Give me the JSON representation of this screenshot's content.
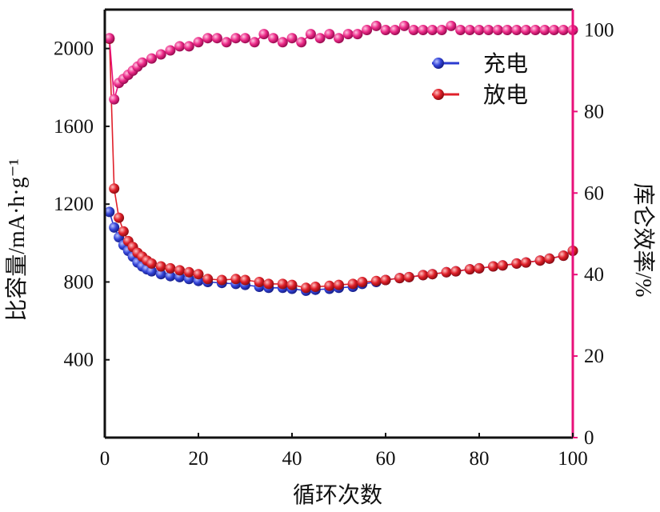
{
  "chart_data": {
    "type": "scatter",
    "xlabel": "循环次数",
    "ylabel": "比容量/mA·h·g⁻¹",
    "y2label": "库仑效率/%",
    "xlim": [
      0,
      100
    ],
    "ylim": [
      0,
      2200
    ],
    "y2lim": [
      0,
      105
    ],
    "xticks": [
      "0",
      "20",
      "40",
      "60",
      "80",
      "100"
    ],
    "yticks": [
      "400",
      "800",
      "1200",
      "1600",
      "2000"
    ],
    "y2ticks": [
      "0",
      "20",
      "40",
      "60",
      "80",
      "100"
    ],
    "legend_position": "top-right",
    "colors": {
      "charge": "#2b3bd0",
      "discharge": "#e0202a",
      "efficiency": "#e8107a",
      "axis": "#111111"
    },
    "series": [
      {
        "name": "充电",
        "axis": "left",
        "x": [
          1,
          2,
          3,
          4,
          5,
          6,
          7,
          8,
          9,
          10,
          12,
          14,
          16,
          18,
          20,
          22,
          25,
          28,
          30,
          33,
          35,
          38,
          40,
          43,
          45,
          48,
          50,
          53,
          55,
          58,
          60,
          63,
          65,
          68,
          70,
          73,
          75,
          78,
          80,
          83,
          85,
          88,
          90,
          93,
          95,
          98,
          100
        ],
        "values": [
          1160,
          1080,
          1030,
          990,
          960,
          930,
          900,
          880,
          865,
          855,
          840,
          830,
          825,
          815,
          805,
          800,
          795,
          790,
          785,
          775,
          770,
          770,
          765,
          755,
          760,
          765,
          770,
          775,
          790,
          800,
          810,
          820,
          825,
          835,
          840,
          850,
          855,
          865,
          870,
          880,
          885,
          895,
          900,
          910,
          920,
          935,
          960
        ]
      },
      {
        "name": "放电",
        "axis": "left",
        "x": [
          1,
          2,
          3,
          4,
          5,
          6,
          7,
          8,
          9,
          10,
          12,
          14,
          16,
          18,
          20,
          22,
          25,
          28,
          30,
          33,
          35,
          38,
          40,
          43,
          45,
          48,
          50,
          53,
          55,
          58,
          60,
          63,
          65,
          68,
          70,
          73,
          75,
          78,
          80,
          83,
          85,
          88,
          90,
          93,
          95,
          98,
          100
        ],
        "values": [
          2050,
          1280,
          1130,
          1060,
          1010,
          980,
          950,
          930,
          910,
          895,
          880,
          870,
          860,
          850,
          840,
          815,
          810,
          815,
          810,
          800,
          790,
          790,
          785,
          770,
          775,
          780,
          785,
          790,
          800,
          805,
          810,
          820,
          825,
          835,
          840,
          850,
          855,
          865,
          870,
          880,
          885,
          895,
          900,
          910,
          920,
          935,
          960
        ]
      },
      {
        "name": "",
        "axis": "right",
        "x": [
          1,
          2,
          3,
          4,
          5,
          6,
          7,
          8,
          10,
          12,
          14,
          16,
          18,
          20,
          22,
          24,
          26,
          28,
          30,
          32,
          34,
          36,
          38,
          40,
          42,
          44,
          46,
          48,
          50,
          52,
          54,
          56,
          58,
          60,
          62,
          64,
          66,
          68,
          70,
          72,
          74,
          76,
          78,
          80,
          82,
          84,
          86,
          88,
          90,
          92,
          94,
          96,
          98,
          100
        ],
        "values": [
          98,
          83,
          87,
          88,
          89,
          90,
          91,
          92,
          93,
          94,
          95,
          96,
          96,
          97,
          98,
          98,
          97,
          98,
          98,
          97,
          99,
          98,
          97,
          98,
          97,
          99,
          98,
          99,
          98,
          99,
          99,
          100,
          101,
          100,
          100,
          101,
          100,
          100,
          100,
          100,
          101,
          100,
          100,
          100,
          100,
          100,
          100,
          100,
          100,
          100,
          100,
          100,
          100,
          100
        ]
      }
    ]
  }
}
